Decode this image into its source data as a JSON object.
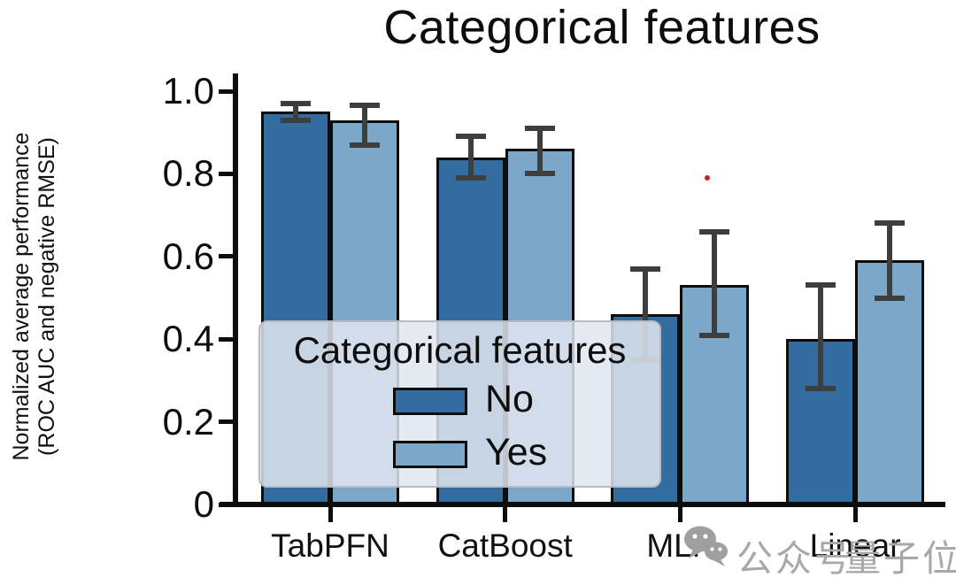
{
  "chart_data": {
    "type": "bar",
    "title": "Categorical features",
    "ylabel_line1": "Normalized average performance",
    "ylabel_line2": "(ROC AUC and negative RMSE)",
    "categories": [
      "TabPFN",
      "CatBoost",
      "MLP",
      "Linear"
    ],
    "yticks": [
      0,
      0.2,
      0.4,
      0.6,
      0.8,
      1.0
    ],
    "ytick_labels": [
      "0",
      "0.2",
      "0.4",
      "0.6",
      "0.8",
      "1.0"
    ],
    "ylim": [
      0,
      1.0
    ],
    "grid": false,
    "legend": {
      "title": "Categorical features",
      "position": "lower left",
      "entries": [
        {
          "label": "No",
          "color": "#336c9e"
        },
        {
          "label": "Yes",
          "color": "#7ba8c8"
        }
      ]
    },
    "series": [
      {
        "name": "No",
        "color": "#336c9e",
        "values": [
          0.95,
          0.84,
          0.46,
          0.4
        ],
        "err_low": [
          0.93,
          0.79,
          0.35,
          0.28
        ],
        "err_high": [
          0.97,
          0.89,
          0.57,
          0.53
        ]
      },
      {
        "name": "Yes",
        "color": "#7ba8c8",
        "values": [
          0.93,
          0.86,
          0.53,
          0.59
        ],
        "err_low": [
          0.87,
          0.8,
          0.41,
          0.5
        ],
        "err_high": [
          0.965,
          0.91,
          0.66,
          0.68
        ]
      }
    ],
    "errorbar_color": "#3e3e3e",
    "annotation_dot_color": "#c32222"
  },
  "watermark": {
    "icon": "wechat-icon",
    "text1": "公众号",
    "text2": "量子位",
    "color": "#a8a8a8"
  }
}
